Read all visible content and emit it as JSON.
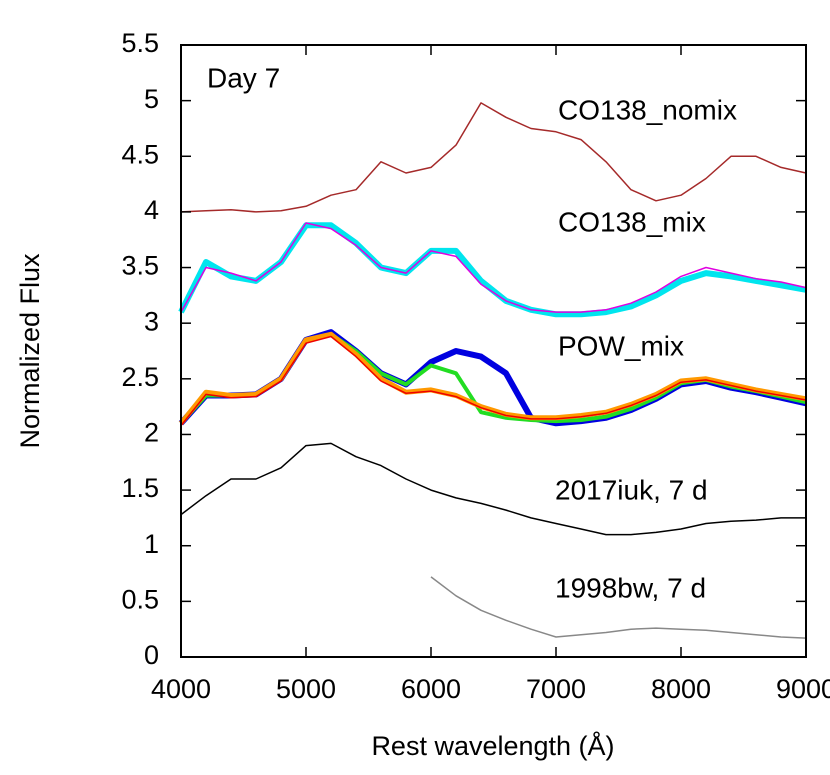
{
  "chart_data": {
    "type": "line",
    "xlabel": "Rest wavelength (Å)",
    "ylabel": "Normalized Flux",
    "annotations": [
      "Day 7",
      "CO138_nomix",
      "CO138_mix",
      "POW_mix",
      "2017iuk, 7 d",
      "1998bw, 7 d"
    ],
    "xlim": [
      4000,
      9000
    ],
    "ylim": [
      0,
      5.5
    ],
    "xticks": [
      4000,
      5000,
      6000,
      7000,
      8000,
      9000
    ],
    "yticks": [
      0,
      0.5,
      1,
      1.5,
      2,
      2.5,
      3,
      3.5,
      4,
      4.5,
      5,
      5.5
    ],
    "x": [
      4000,
      4200,
      4400,
      4600,
      4800,
      5000,
      5200,
      5400,
      5600,
      5800,
      6000,
      6200,
      6400,
      6600,
      6800,
      7000,
      7200,
      7400,
      7600,
      7800,
      8000,
      8200,
      8400,
      8600,
      8800,
      9000
    ],
    "series": [
      {
        "color": "#a52a2a",
        "width": 1.5,
        "values": [
          4.0,
          4.01,
          4.02,
          4.0,
          4.01,
          4.05,
          4.15,
          4.2,
          4.45,
          4.35,
          4.4,
          4.6,
          4.98,
          4.85,
          4.75,
          4.72,
          4.65,
          4.45,
          4.2,
          4.1,
          4.15,
          4.3,
          4.5,
          4.5,
          4.4,
          4.35
        ]
      },
      {
        "color": "#00e5ee",
        "width": 6,
        "values": [
          3.1,
          3.55,
          3.42,
          3.38,
          3.55,
          3.88,
          3.88,
          3.72,
          3.5,
          3.45,
          3.65,
          3.65,
          3.38,
          3.2,
          3.12,
          3.08,
          3.08,
          3.1,
          3.15,
          3.25,
          3.38,
          3.45,
          3.42,
          3.38,
          3.34,
          3.3
        ]
      },
      {
        "color": "#e000e0",
        "width": 1.5,
        "values": [
          3.1,
          3.5,
          3.45,
          3.38,
          3.55,
          3.9,
          3.85,
          3.7,
          3.5,
          3.45,
          3.65,
          3.6,
          3.35,
          3.2,
          3.12,
          3.1,
          3.1,
          3.12,
          3.18,
          3.28,
          3.42,
          3.5,
          3.45,
          3.4,
          3.37,
          3.32
        ]
      },
      {
        "color": "#0000e0",
        "width": 6,
        "values": [
          2.1,
          2.35,
          2.35,
          2.36,
          2.5,
          2.85,
          2.92,
          2.75,
          2.55,
          2.45,
          2.65,
          2.75,
          2.7,
          2.55,
          2.15,
          2.1,
          2.12,
          2.15,
          2.22,
          2.32,
          2.45,
          2.48,
          2.42,
          2.38,
          2.33,
          2.28
        ]
      },
      {
        "color": "#22dd22",
        "width": 4,
        "values": [
          2.1,
          2.35,
          2.35,
          2.36,
          2.5,
          2.85,
          2.9,
          2.75,
          2.55,
          2.45,
          2.62,
          2.55,
          2.2,
          2.15,
          2.13,
          2.12,
          2.13,
          2.16,
          2.23,
          2.33,
          2.46,
          2.49,
          2.43,
          2.39,
          2.34,
          2.29
        ]
      },
      {
        "color": "#ff9900",
        "width": 5,
        "values": [
          2.1,
          2.38,
          2.35,
          2.36,
          2.5,
          2.85,
          2.9,
          2.72,
          2.5,
          2.38,
          2.4,
          2.35,
          2.25,
          2.18,
          2.15,
          2.15,
          2.17,
          2.2,
          2.27,
          2.36,
          2.48,
          2.5,
          2.45,
          2.4,
          2.36,
          2.32
        ]
      },
      {
        "color": "#ee0000",
        "width": 1.5,
        "values": [
          2.08,
          2.36,
          2.33,
          2.34,
          2.48,
          2.82,
          2.88,
          2.7,
          2.48,
          2.37,
          2.39,
          2.34,
          2.24,
          2.17,
          2.14,
          2.14,
          2.16,
          2.19,
          2.26,
          2.35,
          2.47,
          2.49,
          2.44,
          2.39,
          2.35,
          2.31
        ]
      },
      {
        "color": "#000000",
        "width": 1.5,
        "values": [
          1.28,
          1.45,
          1.6,
          1.6,
          1.7,
          1.9,
          1.92,
          1.8,
          1.72,
          1.6,
          1.5,
          1.43,
          1.38,
          1.32,
          1.25,
          1.2,
          1.15,
          1.1,
          1.1,
          1.12,
          1.15,
          1.2,
          1.22,
          1.23,
          1.25,
          1.25
        ]
      },
      {
        "color": "#888888",
        "width": 1.5,
        "values": [
          null,
          null,
          null,
          null,
          null,
          null,
          null,
          null,
          null,
          null,
          0.72,
          0.55,
          0.42,
          0.33,
          0.25,
          0.18,
          0.2,
          0.22,
          0.25,
          0.26,
          0.25,
          0.24,
          0.22,
          0.2,
          0.18,
          0.17
        ]
      }
    ]
  }
}
